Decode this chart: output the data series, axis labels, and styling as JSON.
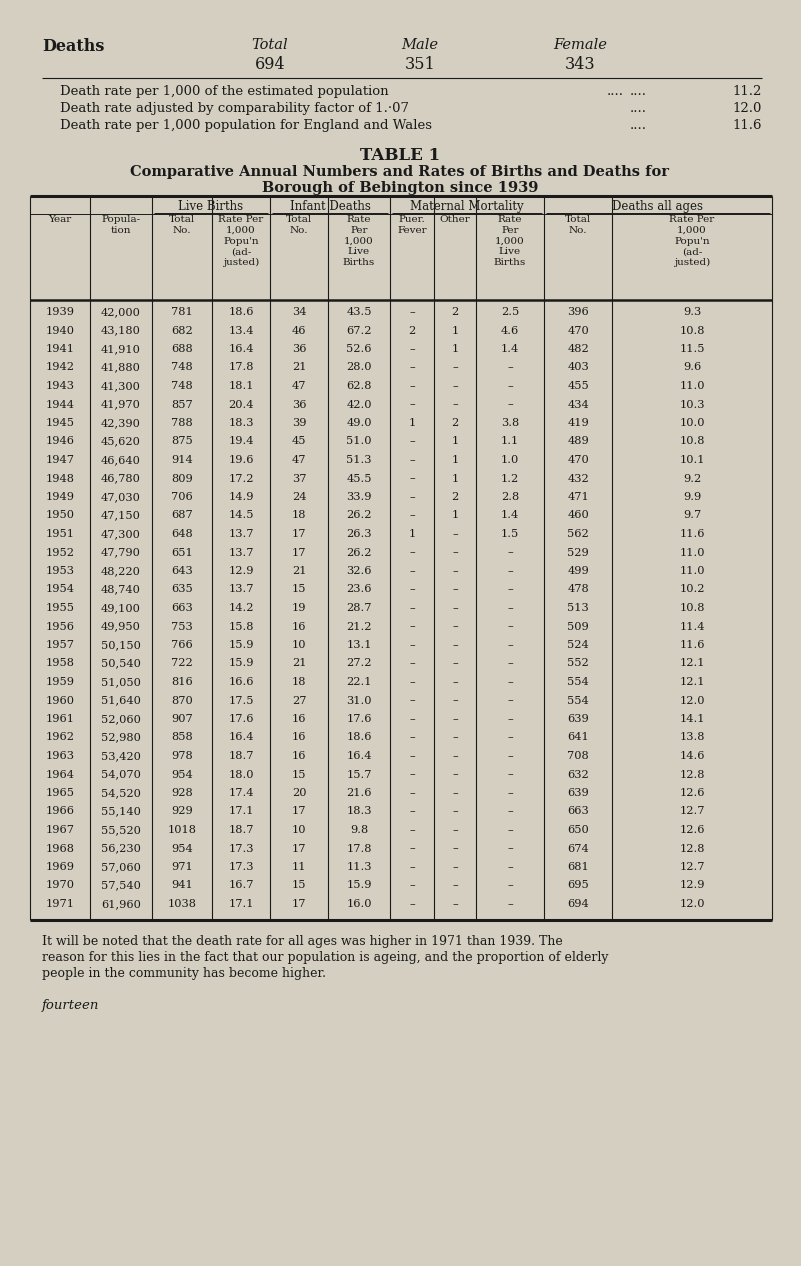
{
  "bg_color": "#d4cfc0",
  "text_color": "#1a1a1a",
  "deaths_label": "Deaths",
  "total_label": "Total",
  "male_label": "Male",
  "female_label": "Female",
  "total_val": "694",
  "male_val": "351",
  "female_val": "343",
  "rate_line1": "Death rate per 1,000 of the estimated population",
  "rate_dots1": "....",
  "rate_val1": "11.2",
  "rate_line2": "Death rate adjusted by comparability factor of 1.·07",
  "rate_dots2": "....",
  "rate_val2": "12.0",
  "rate_line3": "Death rate per 1,000 population for England and Wales",
  "rate_dots3": "....",
  "rate_val3": "11.6",
  "table_title": "TABLE 1",
  "table_subtitle1": "Comparative Annual Numbers and Rates of Births and Deaths for",
  "table_subtitle2": "Borough of Bebington since 1939",
  "footnote1": "It will be noted that the death rate for all ages was higher in 1971 than 1939. The",
  "footnote2": "reason for this lies in the fact that our population is ageing, and the proportion of elderly",
  "footnote3": "people in the community has become higher.",
  "page_label": "fourteen",
  "rows": [
    [
      "1939",
      "42,000",
      "781",
      "18.6",
      "34",
      "43.5",
      "–",
      "2",
      "2.5",
      "396",
      "9.3"
    ],
    [
      "1940",
      "43,180",
      "682",
      "13.4",
      "46",
      "67.2",
      "2",
      "1",
      "4.6",
      "470",
      "10.8"
    ],
    [
      "1941",
      "41,910",
      "688",
      "16.4",
      "36",
      "52.6",
      "–",
      "1",
      "1.4",
      "482",
      "11.5"
    ],
    [
      "1942",
      "41,880",
      "748",
      "17.8",
      "21",
      "28.0",
      "–",
      "–",
      "–",
      "403",
      "9.6"
    ],
    [
      "1943",
      "41,300",
      "748",
      "18.1",
      "47",
      "62.8",
      "–",
      "–",
      "–",
      "455",
      "11.0"
    ],
    [
      "1944",
      "41,970",
      "857",
      "20.4",
      "36",
      "42.0",
      "–",
      "–",
      "–",
      "434",
      "10.3"
    ],
    [
      "1945",
      "42,390",
      "788",
      "18.3",
      "39",
      "49.0",
      "1",
      "2",
      "3.8",
      "419",
      "10.0"
    ],
    [
      "1946",
      "45,620",
      "875",
      "19.4",
      "45",
      "51.0",
      "–",
      "1",
      "1.1",
      "489",
      "10.8"
    ],
    [
      "1947",
      "46,640",
      "914",
      "19.6",
      "47",
      "51.3",
      "–",
      "1",
      "1.0",
      "470",
      "10.1"
    ],
    [
      "1948",
      "46,780",
      "809",
      "17.2",
      "37",
      "45.5",
      "–",
      "1",
      "1.2",
      "432",
      "9.2"
    ],
    [
      "1949",
      "47,030",
      "706",
      "14.9",
      "24",
      "33.9",
      "–",
      "2",
      "2.8",
      "471",
      "9.9"
    ],
    [
      "1950",
      "47,150",
      "687",
      "14.5",
      "18",
      "26.2",
      "–",
      "1",
      "1.4",
      "460",
      "9.7"
    ],
    [
      "1951",
      "47,300",
      "648",
      "13.7",
      "17",
      "26.3",
      "1",
      "–",
      "1.5",
      "562",
      "11.6"
    ],
    [
      "1952",
      "47,790",
      "651",
      "13.7",
      "17",
      "26.2",
      "–",
      "–",
      "–",
      "529",
      "11.0"
    ],
    [
      "1953",
      "48,220",
      "643",
      "12.9",
      "21",
      "32.6",
      "–",
      "–",
      "–",
      "499",
      "11.0"
    ],
    [
      "1954",
      "48,740",
      "635",
      "13.7",
      "15",
      "23.6",
      "–",
      "–",
      "–",
      "478",
      "10.2"
    ],
    [
      "1955",
      "49,100",
      "663",
      "14.2",
      "19",
      "28.7",
      "–",
      "–",
      "–",
      "513",
      "10.8"
    ],
    [
      "1956",
      "49,950",
      "753",
      "15.8",
      "16",
      "21.2",
      "–",
      "–",
      "–",
      "509",
      "11.4"
    ],
    [
      "1957",
      "50,150",
      "766",
      "15.9",
      "10",
      "13.1",
      "–",
      "–",
      "–",
      "524",
      "11.6"
    ],
    [
      "1958",
      "50,540",
      "722",
      "15.9",
      "21",
      "27.2",
      "–",
      "–",
      "–",
      "552",
      "12.1"
    ],
    [
      "1959",
      "51,050",
      "816",
      "16.6",
      "18",
      "22.1",
      "–",
      "–",
      "–",
      "554",
      "12.1"
    ],
    [
      "1960",
      "51,640",
      "870",
      "17.5",
      "27",
      "31.0",
      "–",
      "–",
      "–",
      "554",
      "12.0"
    ],
    [
      "1961",
      "52,060",
      "907",
      "17.6",
      "16",
      "17.6",
      "–",
      "–",
      "–",
      "639",
      "14.1"
    ],
    [
      "1962",
      "52,980",
      "858",
      "16.4",
      "16",
      "18.6",
      "–",
      "–",
      "–",
      "641",
      "13.8"
    ],
    [
      "1963",
      "53,420",
      "978",
      "18.7",
      "16",
      "16.4",
      "–",
      "–",
      "–",
      "708",
      "14.6"
    ],
    [
      "1964",
      "54,070",
      "954",
      "18.0",
      "15",
      "15.7",
      "–",
      "–",
      "–",
      "632",
      "12.8"
    ],
    [
      "1965",
      "54,520",
      "928",
      "17.4",
      "20",
      "21.6",
      "–",
      "–",
      "–",
      "639",
      "12.6"
    ],
    [
      "1966",
      "55,140",
      "929",
      "17.1",
      "17",
      "18.3",
      "–",
      "–",
      "–",
      "663",
      "12.7"
    ],
    [
      "1967",
      "55,520",
      "1018",
      "18.7",
      "10",
      "9.8",
      "–",
      "–",
      "–",
      "650",
      "12.6"
    ],
    [
      "1968",
      "56,230",
      "954",
      "17.3",
      "17",
      "17.8",
      "–",
      "–",
      "–",
      "674",
      "12.8"
    ],
    [
      "1969",
      "57,060",
      "971",
      "17.3",
      "11",
      "11.3",
      "–",
      "–",
      "–",
      "681",
      "12.7"
    ],
    [
      "1970",
      "57,540",
      "941",
      "16.7",
      "15",
      "15.9",
      "–",
      "–",
      "–",
      "695",
      "12.9"
    ],
    [
      "1971",
      "61,960",
      "1038",
      "17.1",
      "17",
      "16.0",
      "–",
      "–",
      "–",
      "694",
      "12.0"
    ]
  ]
}
